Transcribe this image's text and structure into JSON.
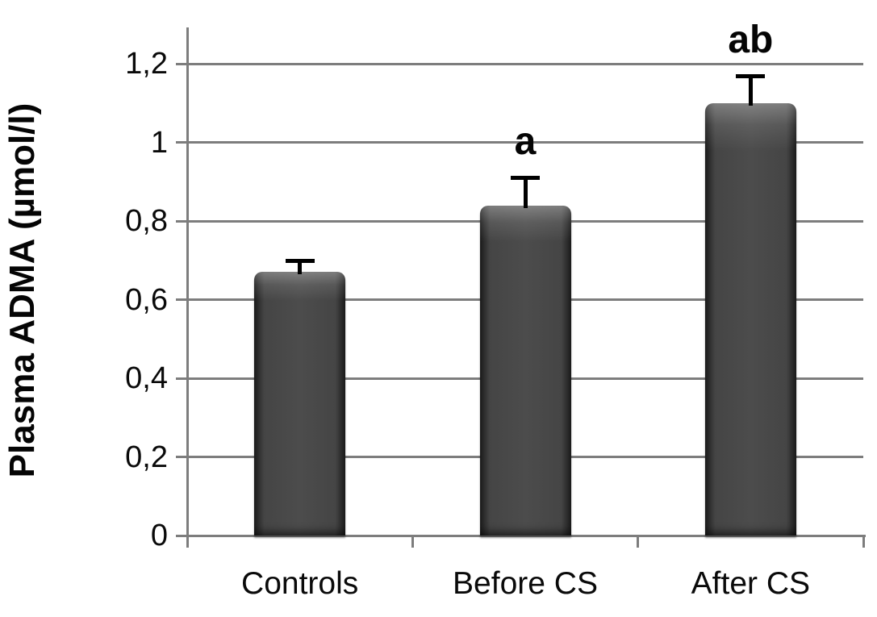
{
  "chart_data": {
    "type": "bar",
    "title": "",
    "xlabel": "",
    "ylabel": "Plasma ADMA (µmol/l)",
    "categories": [
      "Controls",
      "Before CS",
      "After CS"
    ],
    "values": [
      0.67,
      0.84,
      1.1
    ],
    "error_plus": [
      0.03,
      0.07,
      0.07
    ],
    "annotations": [
      "",
      "a",
      "ab"
    ],
    "ylim": [
      0,
      1.3
    ],
    "ytick_values": [
      0,
      0.2,
      0.4,
      0.6,
      0.8,
      1.0,
      1.2
    ],
    "ytick_labels": [
      "0",
      "0,2",
      "0,4",
      "0,6",
      "0,8",
      "1",
      "1,2"
    ],
    "grid": "horizontal",
    "legend_position": "none",
    "colors": {
      "bar_fill": "#3f3f3f",
      "grid_line": "#7d7d7d",
      "error_bar": "#000000",
      "text": "#0a0a0a",
      "background": "#ffffff"
    }
  }
}
